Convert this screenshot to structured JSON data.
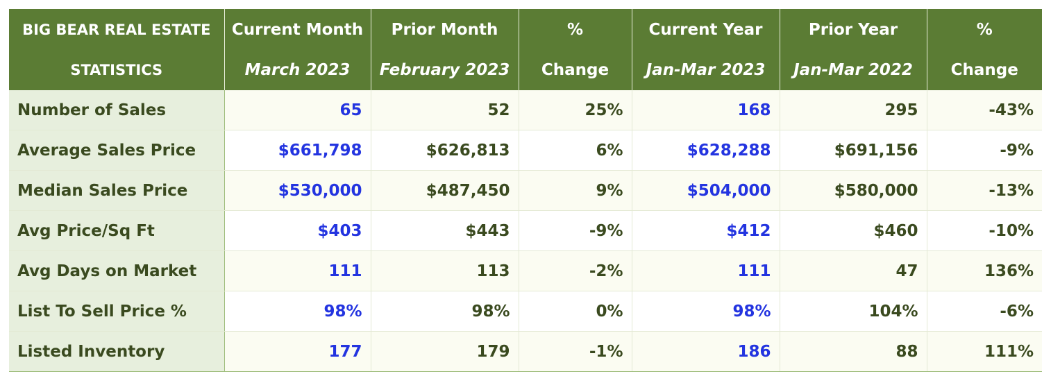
{
  "chart_data": {
    "type": "table",
    "title": "BIG BEAR REAL ESTATE STATISTICS",
    "header": {
      "title_line1": "BIG BEAR REAL ESTATE",
      "title_line2": "STATISTICS",
      "columns": [
        {
          "line1": "Current Month",
          "line2": "March 2023",
          "italic": true
        },
        {
          "line1": "Prior Month",
          "line2": "February 2023",
          "italic": true
        },
        {
          "line1": "%",
          "line2": "Change",
          "italic": false
        },
        {
          "line1": "Current Year",
          "line2": "Jan-Mar 2023",
          "italic": true
        },
        {
          "line1": "Prior Year",
          "line2": "Jan-Mar 2022",
          "italic": true
        },
        {
          "line1": "%",
          "line2": "Change",
          "italic": false
        }
      ]
    },
    "rows": [
      {
        "label": "Number of Sales",
        "values": [
          "65",
          "52",
          "25%",
          "168",
          "295",
          "-43%"
        ]
      },
      {
        "label": "Average Sales Price",
        "values": [
          "$661,798",
          "$626,813",
          "6%",
          "$628,288",
          "$691,156",
          "-9%"
        ]
      },
      {
        "label": "Median Sales Price",
        "values": [
          "$530,000",
          "$487,450",
          "9%",
          "$504,000",
          "$580,000",
          "-13%"
        ]
      },
      {
        "label": "Avg Price/Sq Ft",
        "values": [
          "$403",
          "$443",
          "-9%",
          "$412",
          "$460",
          "-10%"
        ]
      },
      {
        "label": "Avg Days on Market",
        "values": [
          "111",
          "113",
          "-2%",
          "111",
          "47",
          "136%"
        ]
      },
      {
        "label": "List To Sell Price %",
        "values": [
          "98%",
          "98%",
          "0%",
          "98%",
          "104%",
          "-6%"
        ]
      },
      {
        "label": "Listed Inventory",
        "values": [
          "177",
          "179",
          "-1%",
          "186",
          "88",
          "111%"
        ]
      }
    ],
    "highlight_columns": [
      0,
      3
    ]
  },
  "colors": {
    "header_bg": "#5b7c34",
    "header_text": "#ffffff",
    "label_bg": "#e7efdd",
    "text_dark": "#3a4a1f",
    "text_blue": "#2334e0",
    "row_odd_bg": "#fbfcf2",
    "row_even_bg": "#ffffff"
  }
}
